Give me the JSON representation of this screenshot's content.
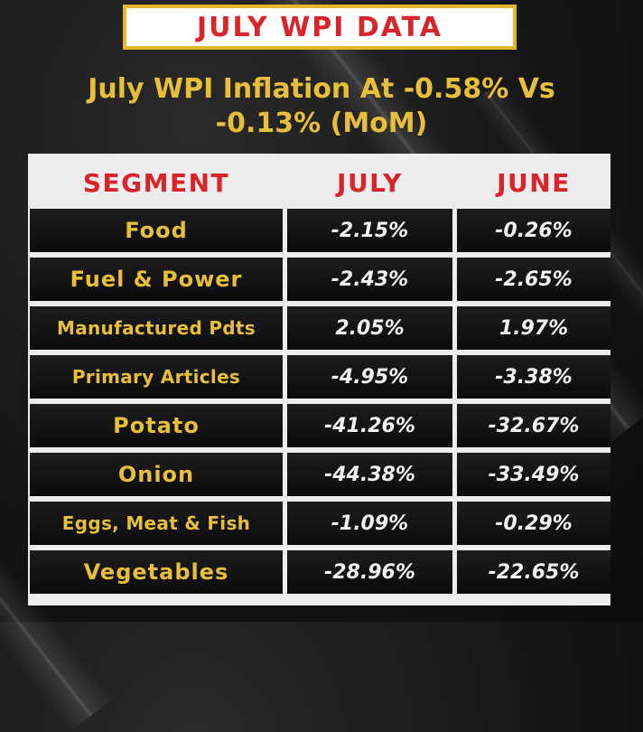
{
  "banner": {
    "title": "JULY WPI DATA"
  },
  "headline": {
    "line1": "July WPI Inflation At -0.58% Vs",
    "line2": "-0.13% (MoM)"
  },
  "table": {
    "headers": [
      "SEGMENT",
      "JULY",
      "JUNE"
    ],
    "rows": [
      {
        "segment": "Food",
        "july": "-2.15%",
        "june": "-0.26%"
      },
      {
        "segment": "Fuel & Power",
        "july": "-2.43%",
        "june": "-2.65%"
      },
      {
        "segment": "Manufactured Pdts",
        "july": "2.05%",
        "june": "1.97%"
      },
      {
        "segment": "Primary Articles",
        "july": "-4.95%",
        "june": "-3.38%"
      },
      {
        "segment": "Potato",
        "july": "-41.26%",
        "june": "-32.67%"
      },
      {
        "segment": "Onion",
        "july": "-44.38%",
        "june": "-33.49%"
      },
      {
        "segment": "Eggs, Meat & Fish",
        "july": "-1.09%",
        "june": "-0.29%"
      },
      {
        "segment": "Vegetables",
        "july": "-28.96%",
        "june": "-22.65%"
      }
    ]
  },
  "colors": {
    "accent_gold": "#e8bf3a",
    "header_red": "#d8242a",
    "background": "#161616",
    "panel": "#ededed"
  }
}
